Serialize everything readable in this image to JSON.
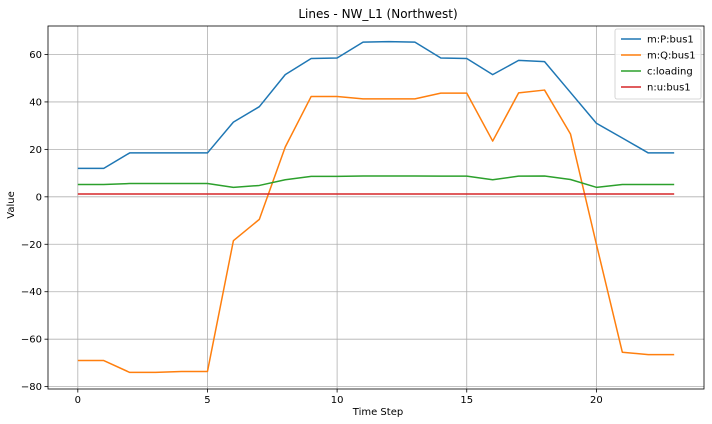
{
  "chart_data": {
    "type": "line",
    "title": "Lines - NW_L1 (Northwest)",
    "xlabel": "Time Step",
    "ylabel": "Value",
    "xlim": [
      -1.15,
      24.15
    ],
    "ylim": [
      -81,
      72
    ],
    "xticks": [
      0,
      5,
      10,
      15,
      20
    ],
    "yticks": [
      -80,
      -60,
      -40,
      -20,
      0,
      20,
      40,
      60
    ],
    "grid": true,
    "legend_position": "top-right",
    "x": [
      0,
      1,
      2,
      3,
      4,
      5,
      6,
      7,
      8,
      9,
      10,
      11,
      12,
      13,
      14,
      15,
      16,
      17,
      18,
      19,
      20,
      21,
      22,
      23
    ],
    "series": [
      {
        "name": "m:P:bus1",
        "color": "#1f77b4",
        "values": [
          12,
          12,
          18.5,
          18.5,
          18.5,
          18.5,
          31.5,
          38,
          51.5,
          58.3,
          58.5,
          65.2,
          65.4,
          65.2,
          58.5,
          58.3,
          51.5,
          57.5,
          57,
          44,
          31,
          24.8,
          18.5,
          18.5
        ]
      },
      {
        "name": "m:Q:bus1",
        "color": "#ff7f0e",
        "values": [
          -69,
          -69,
          -74,
          -74,
          -73.6,
          -73.6,
          -18.5,
          -9.5,
          21,
          42.3,
          42.3,
          41.3,
          41.3,
          41.3,
          43.7,
          43.7,
          23.5,
          43.8,
          45,
          26.5,
          -20,
          -65.5,
          -66.5,
          -66.5
        ]
      },
      {
        "name": "c:loading",
        "color": "#2ca02c",
        "values": [
          5.2,
          5.2,
          5.6,
          5.6,
          5.6,
          5.6,
          4,
          4.8,
          7.2,
          8.6,
          8.6,
          8.8,
          8.8,
          8.8,
          8.7,
          8.7,
          7.2,
          8.7,
          8.8,
          7.3,
          4,
          5.2,
          5.2,
          5.2
        ]
      },
      {
        "name": "n:u:bus1",
        "color": "#d62728",
        "values": [
          1.2,
          1.2,
          1.2,
          1.2,
          1.2,
          1.2,
          1.2,
          1.2,
          1.2,
          1.2,
          1.2,
          1.2,
          1.2,
          1.2,
          1.2,
          1.2,
          1.2,
          1.2,
          1.2,
          1.2,
          1.2,
          1.2,
          1.2,
          1.2
        ]
      }
    ]
  }
}
